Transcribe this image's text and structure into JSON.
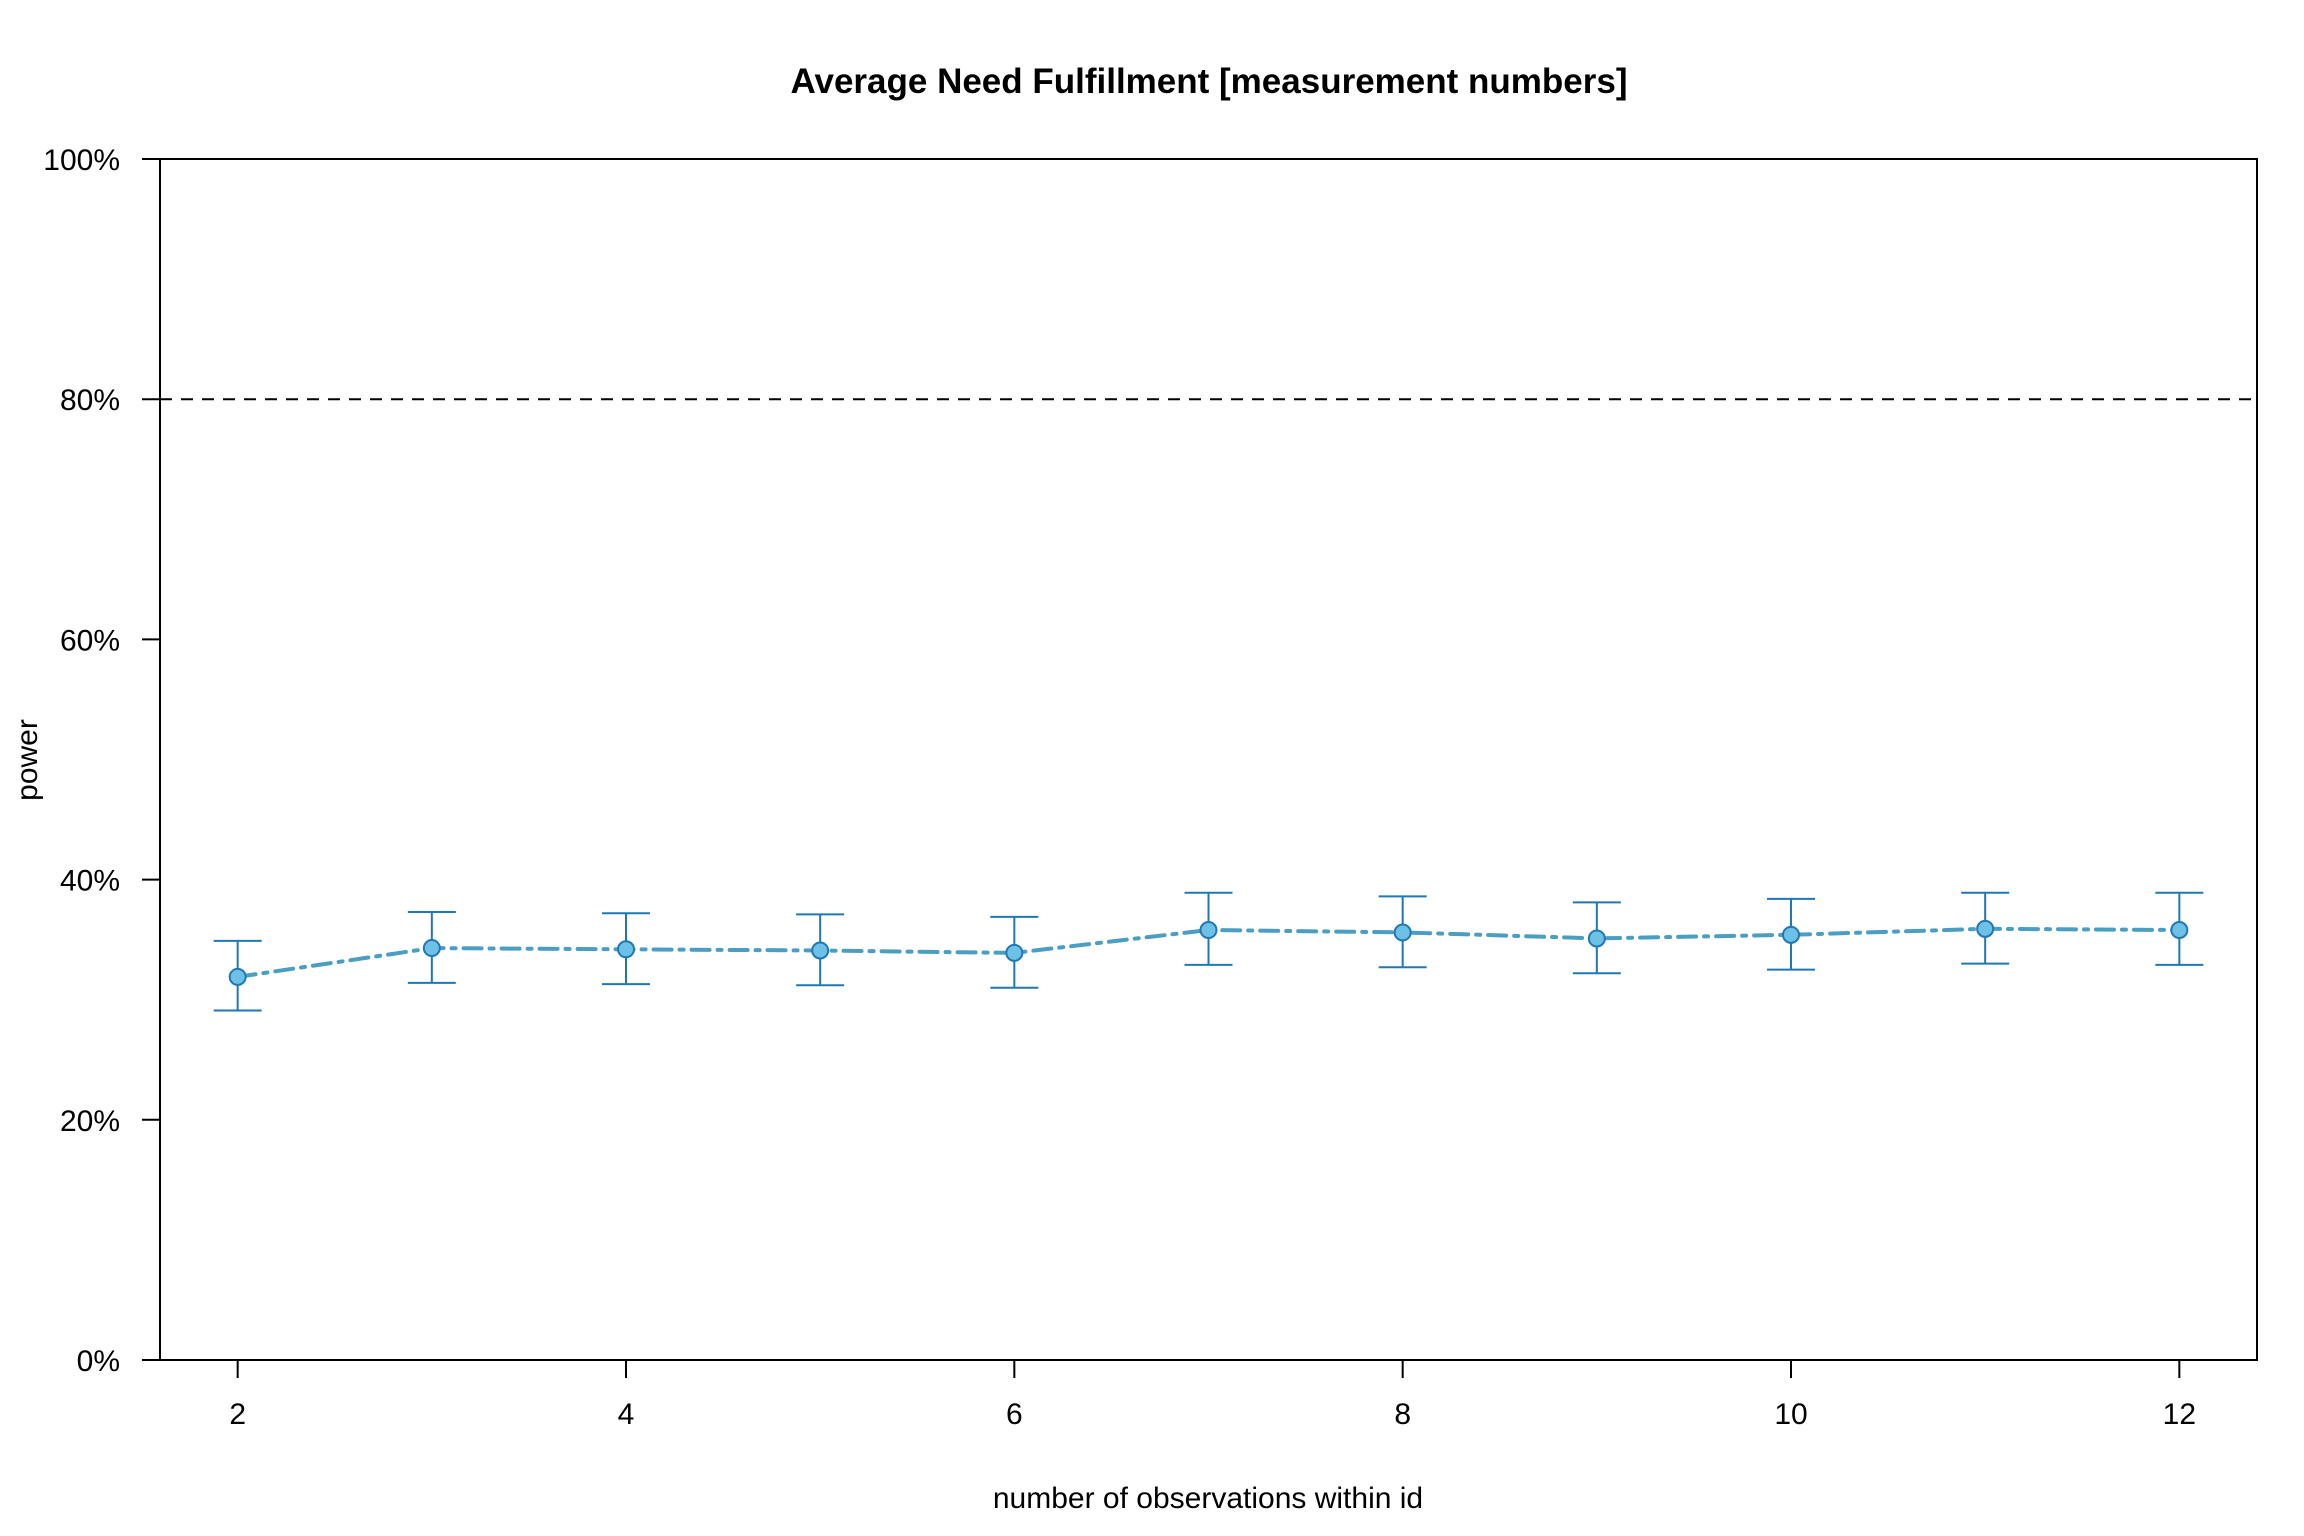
{
  "chart_data": {
    "type": "line",
    "title": "Average Need Fulfillment [measurement numbers]",
    "xlabel": "number of observations within id",
    "ylabel": "power",
    "x": [
      2,
      3,
      4,
      5,
      6,
      7,
      8,
      9,
      10,
      11,
      12
    ],
    "xlim": [
      1.6,
      12.4
    ],
    "ylim": [
      0,
      100
    ],
    "x_ticks": [
      2,
      4,
      6,
      8,
      10,
      12
    ],
    "x_tick_labels": [
      "2",
      "4",
      "6",
      "8",
      "10",
      "12"
    ],
    "y_ticks": [
      0,
      20,
      40,
      60,
      80,
      100
    ],
    "y_tick_labels": [
      "0%",
      "20%",
      "40%",
      "60%",
      "80%",
      "100%"
    ],
    "reference_line": {
      "y": 80,
      "style": "dashed",
      "color": "#000000"
    },
    "series": [
      {
        "values": [
          31.9,
          34.3,
          34.2,
          34.1,
          33.9,
          35.8,
          35.6,
          35.1,
          35.4,
          35.9,
          35.8
        ],
        "lower": [
          29.1,
          31.4,
          31.3,
          31.2,
          31.0,
          32.9,
          32.7,
          32.2,
          32.5,
          33.0,
          32.9
        ],
        "upper": [
          34.9,
          37.3,
          37.2,
          37.1,
          36.9,
          38.9,
          38.6,
          38.1,
          38.4,
          38.9,
          38.9
        ],
        "line_color": "#4a9ec4",
        "marker_fill": "#6ec1e6",
        "marker_edge": "#1f78b4",
        "errorbar_color": "#1f78b4",
        "line_style": "dashdot"
      }
    ],
    "grid": false,
    "legend": "none"
  }
}
